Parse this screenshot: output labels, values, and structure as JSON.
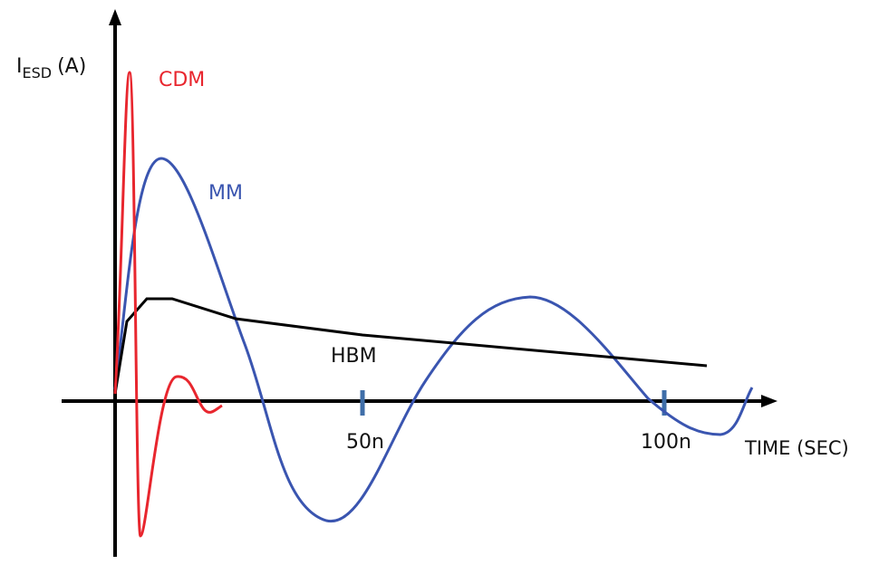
{
  "y_axis": {
    "symbol": "I",
    "subscript": "ESD",
    "unit": "(A)"
  },
  "x_axis": {
    "label": "TIME (SEC)",
    "ticks": [
      "50n",
      "100n"
    ]
  },
  "curves": [
    {
      "label": "CDM"
    },
    {
      "label": "MM"
    },
    {
      "label": "HBM"
    }
  ]
}
